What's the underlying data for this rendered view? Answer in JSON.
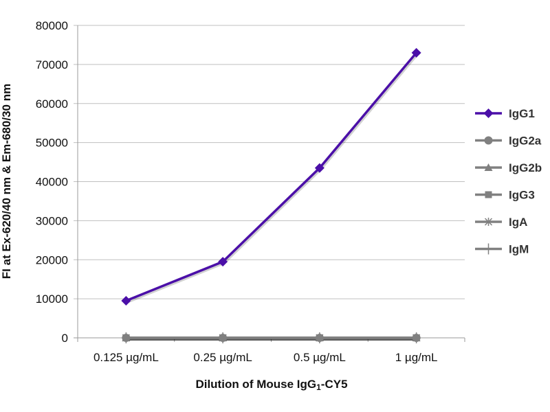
{
  "chart_data": {
    "type": "line",
    "title": "",
    "xlabel_prefix": "Dilution of Mouse IgG",
    "xlabel_sub": "1",
    "xlabel_suffix": "-CY5",
    "ylabel": "FI at Ex-620/40 nm & Em-680/30 nm",
    "categories": [
      "0.125 µg/mL",
      "0.25 µg/mL",
      "0.5 µg/mL",
      "1 µg/mL"
    ],
    "ylim": [
      0,
      80000
    ],
    "yticks": [
      "0",
      "10000",
      "20000",
      "30000",
      "40000",
      "50000",
      "60000",
      "70000",
      "80000"
    ],
    "grid": true,
    "legend_position": "right",
    "series": [
      {
        "name": "IgG1",
        "values": [
          9500,
          19500,
          43500,
          73000
        ],
        "color": "#4b0fa8",
        "marker": "diamond"
      },
      {
        "name": "IgG2a",
        "values": [
          0,
          0,
          0,
          0
        ],
        "color": "#808080",
        "marker": "circle"
      },
      {
        "name": "IgG2b",
        "values": [
          0,
          0,
          0,
          0
        ],
        "color": "#808080",
        "marker": "triangle"
      },
      {
        "name": "IgG3",
        "values": [
          0,
          0,
          0,
          0
        ],
        "color": "#808080",
        "marker": "square"
      },
      {
        "name": "IgA",
        "values": [
          0,
          0,
          0,
          0
        ],
        "color": "#808080",
        "marker": "asterisk"
      },
      {
        "name": "IgM",
        "values": [
          0,
          0,
          0,
          0
        ],
        "color": "#808080",
        "marker": "plus"
      }
    ]
  }
}
